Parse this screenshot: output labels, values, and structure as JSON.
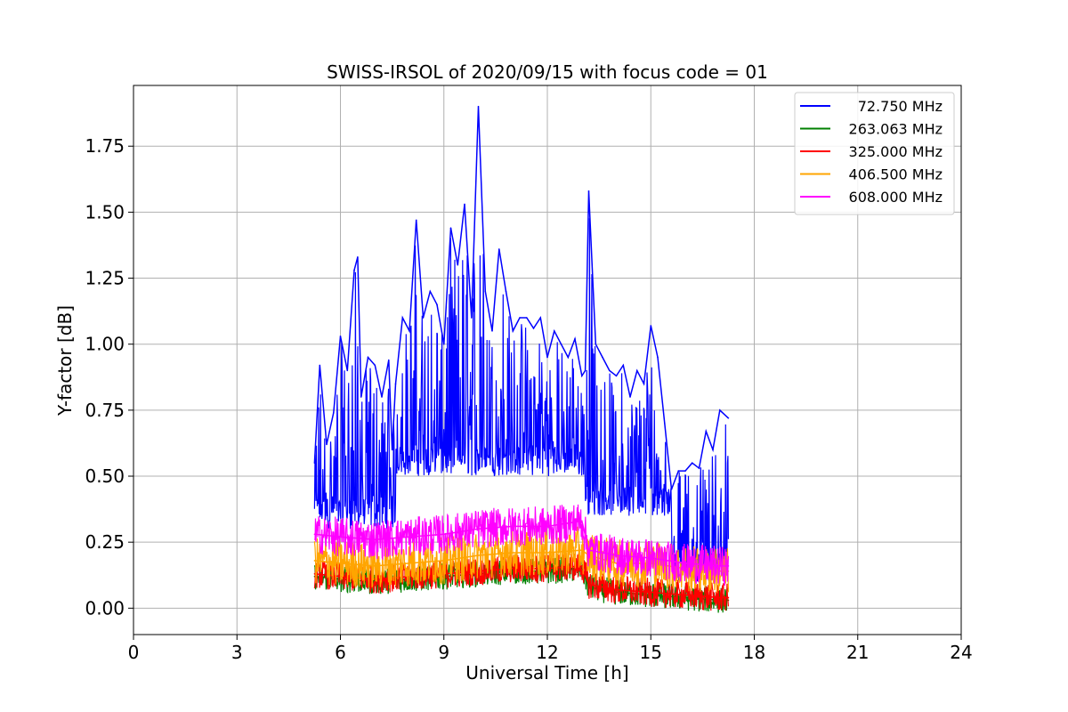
{
  "chart_data": {
    "type": "line",
    "title": "SWISS-IRSOL of 2020/09/15 with focus code = 01",
    "xlabel": "Universal Time [h]",
    "ylabel": "Y-factor [dB]",
    "xlim": [
      0,
      24
    ],
    "ylim": [
      -0.1,
      1.98
    ],
    "xticks": [
      0,
      3,
      6,
      9,
      12,
      15,
      18,
      21,
      24
    ],
    "xtick_labels": [
      "0",
      "3",
      "6",
      "9",
      "12",
      "15",
      "18",
      "21",
      "24"
    ],
    "yticks": [
      0.0,
      0.25,
      0.5,
      0.75,
      1.0,
      1.25,
      1.5,
      1.75
    ],
    "ytick_labels": [
      "0.00",
      "0.25",
      "0.50",
      "0.75",
      "1.00",
      "1.25",
      "1.50",
      "1.75"
    ],
    "grid": true,
    "legend_position": "top-right",
    "series": [
      {
        "name": "72.750 MHz",
        "color": "#0000ff",
        "x": [
          5.25,
          5.4,
          5.6,
          5.8,
          6.0,
          6.2,
          6.4,
          6.5,
          6.6,
          6.8,
          7.0,
          7.2,
          7.4,
          7.5,
          7.6,
          7.8,
          8.0,
          8.2,
          8.4,
          8.6,
          8.8,
          9.0,
          9.2,
          9.4,
          9.6,
          9.8,
          10.0,
          10.2,
          10.4,
          10.6,
          10.8,
          11.0,
          11.2,
          11.4,
          11.6,
          11.8,
          12.0,
          12.2,
          12.4,
          12.6,
          12.8,
          13.0,
          13.1,
          13.2,
          13.4,
          13.6,
          13.8,
          14.0,
          14.2,
          14.4,
          14.6,
          14.8,
          15.0,
          15.2,
          15.4,
          15.6,
          15.8,
          16.0,
          16.2,
          16.4,
          16.6,
          16.8,
          17.0,
          17.25
        ],
        "values": [
          0.55,
          0.92,
          0.62,
          0.74,
          1.03,
          0.9,
          1.28,
          1.33,
          0.8,
          0.95,
          0.92,
          0.8,
          0.94,
          0.6,
          0.85,
          1.1,
          1.05,
          1.47,
          1.1,
          1.2,
          1.15,
          1.0,
          1.44,
          1.3,
          1.53,
          1.1,
          1.9,
          1.2,
          1.05,
          1.36,
          1.2,
          1.05,
          1.1,
          1.1,
          1.06,
          1.1,
          0.95,
          1.05,
          1.0,
          0.95,
          1.02,
          0.88,
          0.9,
          1.58,
          1.0,
          0.95,
          0.9,
          0.88,
          0.92,
          0.8,
          0.9,
          0.85,
          1.07,
          0.95,
          0.7,
          0.45,
          0.52,
          0.52,
          0.55,
          0.53,
          0.67,
          0.6,
          0.75,
          0.72
        ]
      },
      {
        "name": "263.063 MHz",
        "color": "#008000",
        "x": [
          5.25,
          6.0,
          7.0,
          8.0,
          9.0,
          10.0,
          11.0,
          12.0,
          13.0,
          13.2,
          14.0,
          15.0,
          16.0,
          17.0,
          17.25
        ],
        "values": [
          0.12,
          0.11,
          0.1,
          0.11,
          0.12,
          0.13,
          0.14,
          0.14,
          0.15,
          0.08,
          0.06,
          0.05,
          0.04,
          0.03,
          0.03
        ]
      },
      {
        "name": "325.000 MHz",
        "color": "#ff0000",
        "x": [
          5.25,
          6.0,
          7.0,
          8.0,
          9.0,
          10.0,
          11.0,
          12.0,
          13.0,
          13.2,
          14.0,
          15.0,
          16.0,
          17.0,
          17.25
        ],
        "values": [
          0.13,
          0.12,
          0.11,
          0.12,
          0.13,
          0.14,
          0.15,
          0.15,
          0.16,
          0.09,
          0.07,
          0.06,
          0.05,
          0.04,
          0.04
        ]
      },
      {
        "name": "406.500 MHz",
        "color": "#ffa500",
        "x": [
          5.25,
          6.0,
          7.0,
          8.0,
          9.0,
          10.0,
          11.0,
          12.0,
          13.0,
          13.2,
          14.0,
          15.0,
          16.0,
          17.0,
          17.25
        ],
        "values": [
          0.18,
          0.17,
          0.16,
          0.17,
          0.18,
          0.2,
          0.21,
          0.21,
          0.22,
          0.2,
          0.17,
          0.17,
          0.15,
          0.14,
          0.14
        ]
      },
      {
        "name": "608.000 MHz",
        "color": "#ff00ff",
        "x": [
          5.25,
          6.0,
          7.0,
          8.0,
          9.0,
          10.0,
          11.0,
          12.0,
          13.0,
          13.2,
          14.0,
          15.0,
          16.0,
          17.0,
          17.25
        ],
        "values": [
          0.28,
          0.27,
          0.26,
          0.27,
          0.28,
          0.3,
          0.31,
          0.31,
          0.33,
          0.22,
          0.2,
          0.19,
          0.17,
          0.16,
          0.16
        ]
      }
    ]
  }
}
